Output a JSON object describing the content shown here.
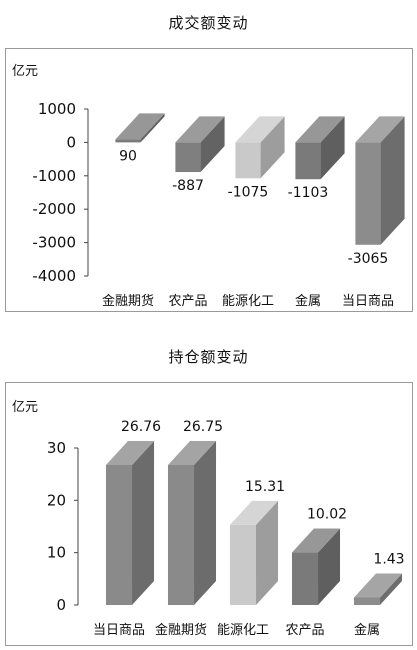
{
  "chart_data": [
    {
      "type": "bar",
      "title": "成交额变动",
      "ylabel": "亿元",
      "ylim": [
        -4000,
        1000
      ],
      "yticks": [
        "1000",
        "0",
        "-1000",
        "-2000",
        "-3000",
        "-4000"
      ],
      "categories": [
        "金融期货",
        "农产品",
        "能源化工",
        "金属",
        "当日商品"
      ],
      "values": [
        90,
        -887,
        -1075,
        -1103,
        -3065
      ],
      "data_labels": [
        "90",
        "-887",
        "-1075",
        "-1103",
        "-3065"
      ],
      "colors": [
        "#7a7a7a",
        "#7f7f7f",
        "#c9c9c9",
        "#7a7a7a",
        "#8c8c8c"
      ],
      "grid": false,
      "style": "3d-column"
    },
    {
      "type": "bar",
      "title": "持仓额变动",
      "ylabel": "亿元",
      "ylim": [
        0,
        30
      ],
      "yticks": [
        "30",
        "20",
        "10",
        "0"
      ],
      "categories": [
        "当日商品",
        "金融期货",
        "能源化工",
        "农产品",
        "金属"
      ],
      "values": [
        26.76,
        26.75,
        15.31,
        10.02,
        1.43
      ],
      "data_labels": [
        "26.76",
        "26.75",
        "15.31",
        "10.02",
        "1.43"
      ],
      "colors": [
        "#8a8a8a",
        "#8a8a8a",
        "#c9c9c9",
        "#7a7a7a",
        "#8c8c8c"
      ],
      "grid": false,
      "style": "3d-column"
    }
  ]
}
